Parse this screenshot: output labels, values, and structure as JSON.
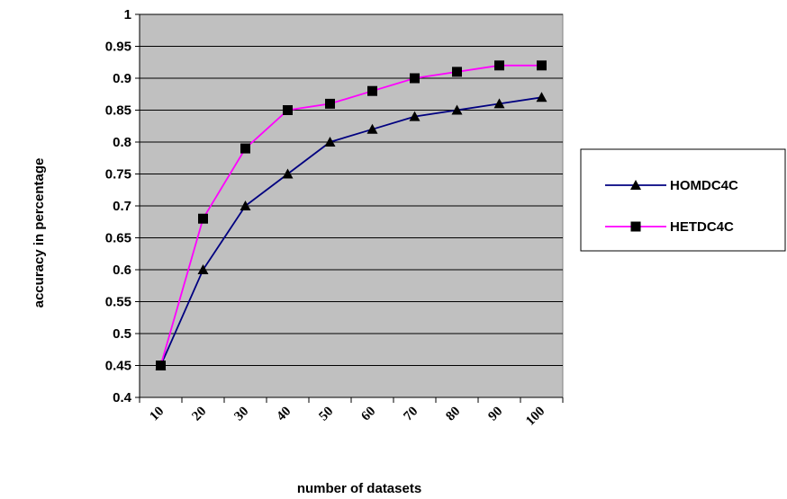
{
  "chart_data": {
    "type": "line",
    "title": "",
    "xlabel": "number of datasets",
    "ylabel": "accuracy in percentage",
    "categories": [
      "10",
      "20",
      "30",
      "40",
      "50",
      "60",
      "70",
      "80",
      "90",
      "100"
    ],
    "ylim": [
      0.4,
      1
    ],
    "ystep": 0.05,
    "y_tick_labels": [
      "0.4",
      "0.45",
      "0.5",
      "0.55",
      "0.6",
      "0.65",
      "0.7",
      "0.75",
      "0.8",
      "0.85",
      "0.9",
      "0.95",
      "1"
    ],
    "grid": true,
    "legend_position": "right",
    "plot_background": "#c0c0c0",
    "series": [
      {
        "name": "HOMDC4C",
        "marker": "triangle",
        "color": "#000080",
        "values": [
          0.45,
          0.6,
          0.7,
          0.75,
          0.8,
          0.82,
          0.84,
          0.85,
          0.86,
          0.87
        ]
      },
      {
        "name": "HETDC4C",
        "marker": "square",
        "color": "#ff00ff",
        "values": [
          0.45,
          0.68,
          0.79,
          0.85,
          0.86,
          0.88,
          0.9,
          0.91,
          0.92,
          0.92
        ]
      }
    ]
  }
}
